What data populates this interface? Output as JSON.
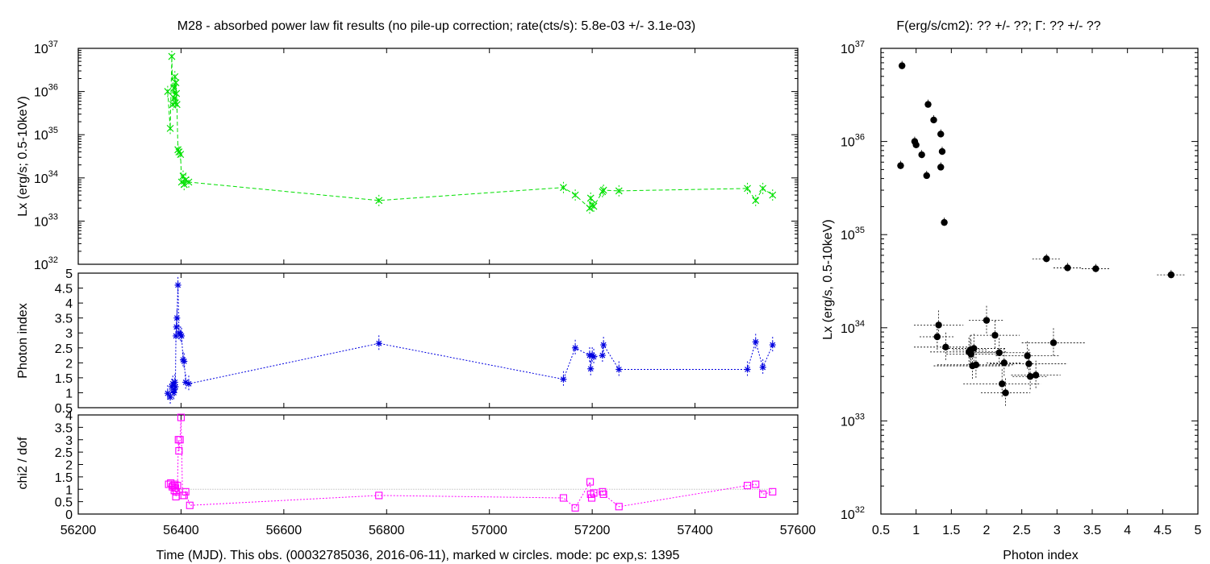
{
  "left_title": "M28  - absorbed power law fit results (no pile-up correction; rate(cts/s): 5.8e-03 +/- 3.1e-03)",
  "right_title": "F(erg/s/cm2): ?? +/- ??; Γ: ?? +/- ??",
  "left_xlabel": "Time (MJD). This obs. (00032785036, 2016-06-11), marked w circles. mode: pc exp,s: 1395",
  "colors": {
    "lx": "#00e000",
    "gamma": "#0000e0",
    "chi2": "#ff00ff",
    "ref": "#a0a0a0",
    "scatter": "#000000"
  },
  "chart_data": [
    {
      "type": "line",
      "panel": "lx-vs-time",
      "ylabel": "Lx (erg/s; 0.5-10keV)",
      "log_y": true,
      "xlim": [
        56200,
        57600
      ],
      "ylim_exp": [
        32,
        37
      ],
      "y_ticks": [
        {
          "base": "10",
          "exp": "32"
        },
        {
          "base": "10",
          "exp": "33"
        },
        {
          "base": "10",
          "exp": "34"
        },
        {
          "base": "10",
          "exp": "35"
        },
        {
          "base": "10",
          "exp": "36"
        },
        {
          "base": "10",
          "exp": "37"
        }
      ],
      "x_ticks": [
        "56200",
        "56400",
        "56600",
        "56800",
        "57000",
        "57200",
        "57400",
        "57600"
      ],
      "x": [
        56374,
        56379,
        56382,
        56384,
        56386,
        56387,
        56388,
        56389,
        56390,
        56391,
        56392,
        56394,
        56396,
        56399,
        56401,
        56404,
        56406,
        56409,
        56415,
        56785,
        57144,
        57167,
        57195,
        57197,
        57200,
        57203,
        57220,
        57222,
        57252,
        57502,
        57518,
        57532,
        57551
      ],
      "y": [
        1e+36,
        1.4e+35,
        6.5e+36,
        5e+35,
        1.2e+36,
        7e+35,
        2.2e+36,
        5.5e+35,
        1.6e+36,
        9e+35,
        5e+35,
        4.5e+34,
        4e+34,
        3.5e+34,
        8e+33,
        1.1e+34,
        7e+33,
        9e+33,
        8e+33,
        3e+33,
        6e+33,
        4e+33,
        2e+33,
        3.4e+33,
        2.4e+33,
        2.2e+33,
        4.8e+33,
        5.2e+33,
        5e+33,
        5.7e+33,
        3e+33,
        5.7e+33,
        4e+33
      ]
    },
    {
      "type": "line",
      "panel": "photon-index-vs-time",
      "ylabel": "Photon index",
      "xlim": [
        56200,
        57600
      ],
      "ylim": [
        0.5,
        5
      ],
      "y_ticks": [
        "0.5",
        "1",
        "1.5",
        "2",
        "2.5",
        "3",
        "3.5",
        "4",
        "4.5",
        "5"
      ],
      "x_ticks": [
        "56200",
        "56400",
        "56600",
        "56800",
        "57000",
        "57200",
        "57400",
        "57600"
      ],
      "x": [
        56374,
        56379,
        56382,
        56384,
        56386,
        56387,
        56388,
        56389,
        56390,
        56391,
        56392,
        56394,
        56396,
        56399,
        56401,
        56404,
        56406,
        56409,
        56415,
        56785,
        57144,
        57167,
        57195,
        57197,
        57200,
        57203,
        57220,
        57222,
        57252,
        57502,
        57518,
        57532,
        57551
      ],
      "y": [
        0.98,
        0.85,
        1.2,
        1.3,
        1.0,
        1.1,
        1.35,
        1.2,
        2.9,
        3.2,
        3.5,
        4.6,
        3.0,
        2.95,
        2.9,
        2.1,
        2.05,
        1.35,
        1.3,
        2.65,
        1.45,
        2.5,
        2.25,
        1.8,
        2.25,
        2.2,
        2.25,
        2.6,
        1.78,
        1.78,
        2.7,
        1.85,
        2.6
      ]
    },
    {
      "type": "line",
      "panel": "chi2-vs-time",
      "ylabel": "chi2 / dof",
      "xlim": [
        56200,
        57600
      ],
      "ylim": [
        0,
        4
      ],
      "reference_line": 1,
      "y_ticks": [
        "0",
        "0.5",
        "1",
        "1.5",
        "2",
        "2.5",
        "3",
        "3.5",
        "4"
      ],
      "x_ticks": [
        "56200",
        "56400",
        "56600",
        "56800",
        "57000",
        "57200",
        "57400",
        "57600"
      ],
      "x": [
        56376,
        56380,
        56383,
        56385,
        56387,
        56388,
        56389,
        56390,
        56391,
        56393,
        56395,
        56396,
        56398,
        56400,
        56403,
        56406,
        56409,
        56417,
        56785,
        57144,
        57167,
        57196,
        57197,
        57199,
        57203,
        57220,
        57222,
        57252,
        57502,
        57518,
        57532,
        57551
      ],
      "y": [
        1.2,
        1.25,
        1.1,
        1.15,
        0.95,
        1.2,
        1.05,
        0.7,
        0.9,
        1.15,
        3.0,
        2.55,
        3.0,
        3.9,
        0.75,
        0.75,
        0.9,
        0.35,
        0.75,
        0.65,
        0.25,
        1.3,
        0.8,
        0.65,
        0.85,
        0.9,
        0.8,
        0.3,
        1.15,
        1.2,
        0.8,
        0.9
      ]
    },
    {
      "type": "scatter",
      "panel": "lx-vs-photon-index",
      "xlabel": "Photon index",
      "ylabel": "Lx (erg/s, 0.5-10keV)",
      "log_y": true,
      "xlim": [
        0.5,
        5
      ],
      "ylim_exp": [
        32,
        37
      ],
      "x_ticks": [
        "0.5",
        "1",
        "1.5",
        "2",
        "2.5",
        "3",
        "3.5",
        "4",
        "4.5",
        "5"
      ],
      "y_ticks": [
        {
          "base": "10",
          "exp": "32"
        },
        {
          "base": "10",
          "exp": "33"
        },
        {
          "base": "10",
          "exp": "34"
        },
        {
          "base": "10",
          "exp": "35"
        },
        {
          "base": "10",
          "exp": "36"
        },
        {
          "base": "10",
          "exp": "37"
        }
      ],
      "x": [
        0.8,
        0.78,
        0.98,
        1.0,
        1.08,
        1.15,
        1.17,
        1.25,
        1.35,
        1.37,
        1.35,
        1.4,
        2.85,
        3.15,
        3.55,
        4.62,
        1.3,
        1.32,
        1.42,
        1.75,
        1.77,
        1.78,
        1.82,
        1.85,
        2.0,
        2.12,
        2.18,
        2.22,
        2.25,
        2.27,
        2.58,
        2.6,
        2.62,
        2.7,
        2.95,
        1.8
      ],
      "y": [
        6.5e+36,
        5.5e+35,
        1e+36,
        9.2e+35,
        7.2e+35,
        4.3e+35,
        2.5e+36,
        1.7e+36,
        1.2e+36,
        7.8e+35,
        5.3e+35,
        1.35e+35,
        5.5e+34,
        4.4e+34,
        4.3e+34,
        3.7e+34,
        8e+33,
        1.07e+34,
        6.2e+33,
        5.5e+33,
        5.8e+33,
        5.2e+33,
        6e+33,
        4e+33,
        1.2e+34,
        8.3e+33,
        5.4e+33,
        2.5e+33,
        4.2e+33,
        2e+33,
        5e+33,
        4.1e+33,
        3e+33,
        3.1e+33,
        6.9e+33,
        3.9e+33
      ]
    }
  ]
}
